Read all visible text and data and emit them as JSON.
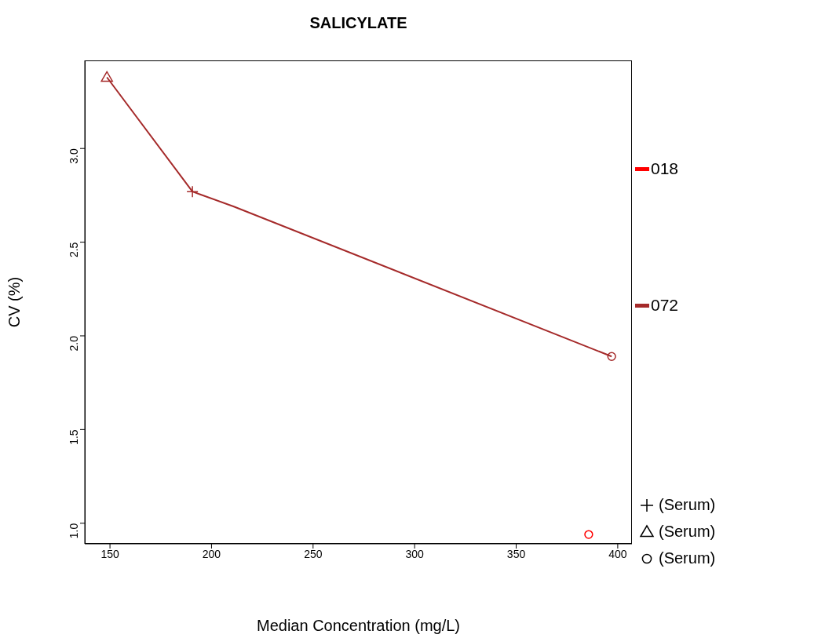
{
  "chart_data": {
    "type": "line",
    "title": "SALICYLATE",
    "xlabel": "Median Concentration  (mg/L)",
    "ylabel": "CV (%)",
    "xlim": [
      137.6,
      407
    ],
    "xticks": [
      150,
      200,
      250,
      300,
      350,
      400
    ],
    "ylim": [
      0.89,
      3.47
    ],
    "yticks": [
      {
        "value": 1,
        "label": "1.0"
      },
      1.5,
      {
        "value": 2,
        "label": "2.0"
      },
      2.5,
      {
        "value": 3,
        "label": "3.0"
      }
    ],
    "grid": false,
    "legend": "right",
    "series": [
      {
        "name": "018",
        "type": "scatter",
        "color": "#ff0000",
        "marker": "circle",
        "x": [
          385.7
        ],
        "values": [
          0.94
        ]
      },
      {
        "name": "072",
        "color": "#a52a2a",
        "marker": "none",
        "x": [
          148.5,
          190.6,
          211,
          397
        ],
        "values": [
          3.38,
          2.77,
          2.69,
          1.89
        ]
      },
      {
        "type": "scatter",
        "color": "#a52a2a",
        "marker": "triangle",
        "x": [
          148.5
        ],
        "values": [
          3.38
        ]
      },
      {
        "type": "scatter",
        "color": "#a52a2a",
        "marker": "cross",
        "x": [
          190.6
        ],
        "values": [
          2.77
        ]
      },
      {
        "type": "scatter",
        "color": "#a52a2a",
        "marker": "circle",
        "x": [
          397
        ],
        "values": [
          1.89
        ]
      }
    ],
    "annotations": [
      "(Serum)",
      "(Serum)",
      "(Serum)"
    ]
  }
}
